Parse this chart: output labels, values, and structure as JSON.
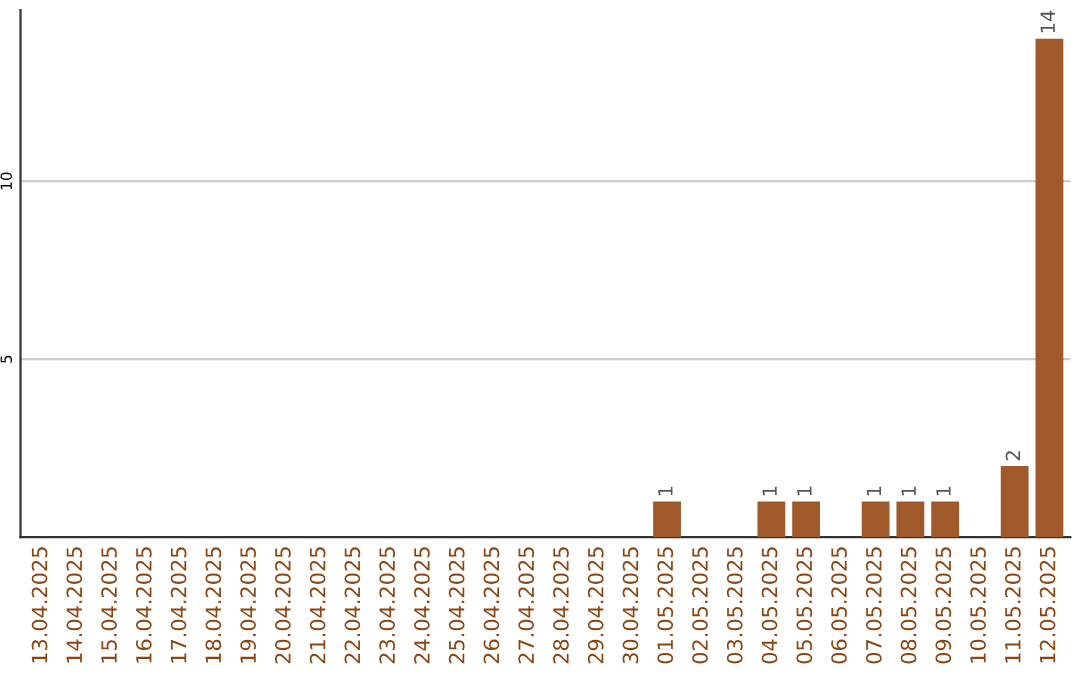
{
  "chart_data": {
    "type": "bar",
    "categories": [
      "13.04.2025",
      "14.04.2025",
      "15.04.2025",
      "16.04.2025",
      "17.04.2025",
      "18.04.2025",
      "19.04.2025",
      "20.04.2025",
      "21.04.2025",
      "22.04.2025",
      "23.04.2025",
      "24.04.2025",
      "25.04.2025",
      "26.04.2025",
      "27.04.2025",
      "28.04.2025",
      "29.04.2025",
      "30.04.2025",
      "01.05.2025",
      "02.05.2025",
      "03.05.2025",
      "04.05.2025",
      "05.05.2025",
      "06.05.2025",
      "07.05.2025",
      "08.05.2025",
      "09.05.2025",
      "10.05.2025",
      "11.05.2025",
      "12.05.2025"
    ],
    "values": [
      0,
      0,
      0,
      0,
      0,
      0,
      0,
      0,
      0,
      0,
      0,
      0,
      0,
      0,
      0,
      0,
      0,
      0,
      1,
      0,
      0,
      1,
      1,
      0,
      1,
      1,
      1,
      0,
      2,
      14
    ],
    "value_labels": [
      null,
      null,
      null,
      null,
      null,
      null,
      null,
      null,
      null,
      null,
      null,
      null,
      null,
      null,
      null,
      null,
      null,
      null,
      "1",
      null,
      null,
      "1",
      "1",
      null,
      "1",
      "1",
      "1",
      null,
      "2",
      "14"
    ],
    "color": "#a0592a",
    "ylim": [
      0,
      14.8
    ],
    "yticks": [
      5,
      10
    ],
    "grid": "y"
  }
}
